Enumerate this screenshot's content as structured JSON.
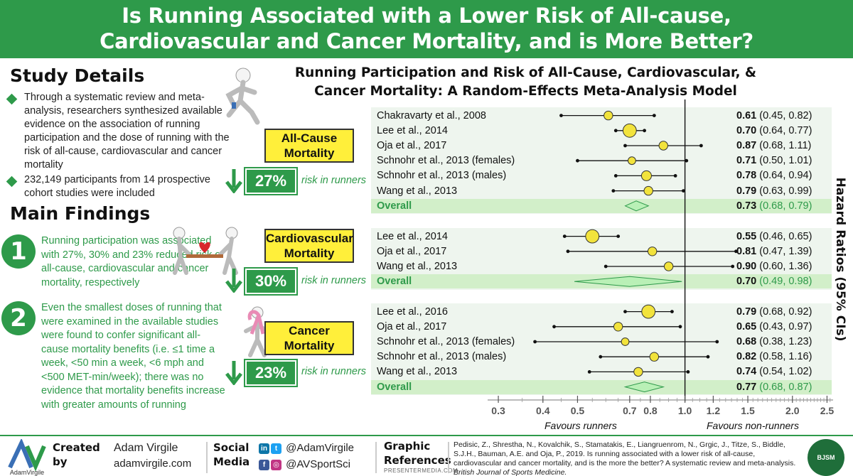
{
  "header": {
    "line1": "Is Running Associated with a Lower Risk of All-cause,",
    "line2": "Cardiovascular and Cancer Mortality, and is More Better?"
  },
  "study_details": {
    "title": "Study Details",
    "bullets": [
      "Through a systematic review and meta-analysis, researchers synthesized available evidence on the association of running participation and the dose of running with the risk of all-cause, cardiovascular and cancer mortality",
      "232,149 participants from 14 prospective cohort studies were included"
    ]
  },
  "main_findings": {
    "title": "Main Findings",
    "items": [
      {
        "num": "1",
        "text": "Running participation was associated with 27%, 30% and 23% reduced risk of all-cause, cardiovascular and cancer mortality, respectively"
      },
      {
        "num": "2",
        "text": "Even the smallest doses of running that were examined in the available studies were found to confer significant all-cause mortality benefits (i.e. ≤1 time a week, <50 min a week, <6 mph and <500 MET-min/week); there was no evidence that mortality benefits increase with greater amounts of running"
      }
    ]
  },
  "mortality": [
    {
      "label": "All-Cause Mortality",
      "pct": "27%",
      "risk": "risk in runners"
    },
    {
      "label": "Cardiovascular Mortality",
      "pct": "30%",
      "risk": "risk in runners"
    },
    {
      "label": "Cancer Mortality",
      "pct": "23%",
      "risk": "risk in runners"
    }
  ],
  "figure": {
    "title_line1": "Running Participation and Risk of All-Cause, Cardiovascular, &",
    "title_line2": "Cancer Mortality: A Random-Effects Meta-Analysis Model",
    "y_axis_label": "Hazard Ratios (95% CIs)",
    "favours_left": "Favours runners",
    "favours_right": "Favours non-runners"
  },
  "chart_data": {
    "type": "forest",
    "scale": "log",
    "xlim": [
      0.28,
      2.6
    ],
    "reference_line": 1.0,
    "ticks": [
      "0.3",
      "0.4",
      "0.5",
      "0.7",
      "0.8",
      "1.0",
      "1.2",
      "1.5",
      "2.0",
      "2.5"
    ],
    "groups": [
      {
        "name": "All-Cause Mortality",
        "studies": [
          {
            "label": "Chakravarty et al., 2008",
            "hr": 0.61,
            "lo": 0.45,
            "hi": 0.82,
            "hr_text": "0.61",
            "ci_text": "(0.45, 0.82)",
            "weight": 2
          },
          {
            "label": "Lee et al., 2014",
            "hr": 0.7,
            "lo": 0.64,
            "hi": 0.77,
            "hr_text": "0.70",
            "ci_text": "(0.64, 0.77)",
            "weight": 4
          },
          {
            "label": "Oja et al., 2017",
            "hr": 0.87,
            "lo": 0.68,
            "hi": 1.11,
            "hr_text": "0.87",
            "ci_text": "(0.68, 1.11)",
            "weight": 2
          },
          {
            "label": "Schnohr et al., 2013 (females)",
            "hr": 0.71,
            "lo": 0.5,
            "hi": 1.01,
            "hr_text": "0.71",
            "ci_text": "(0.50, 1.01)",
            "weight": 1.5
          },
          {
            "label": "Schnohr et al., 2013 (males)",
            "hr": 0.78,
            "lo": 0.64,
            "hi": 0.94,
            "hr_text": "0.78",
            "ci_text": "(0.64, 0.94)",
            "weight": 2.5
          },
          {
            "label": "Wang et al., 2013",
            "hr": 0.79,
            "lo": 0.63,
            "hi": 0.99,
            "hr_text": "0.79",
            "ci_text": "(0.63, 0.99)",
            "weight": 2
          }
        ],
        "overall": {
          "label": "Overall",
          "hr": 0.73,
          "lo": 0.68,
          "hi": 0.79,
          "hr_text": "0.73",
          "ci_text": "(0.68, 0.79)"
        }
      },
      {
        "name": "Cardiovascular Mortality",
        "studies": [
          {
            "label": "Lee et al., 2014",
            "hr": 0.55,
            "lo": 0.46,
            "hi": 0.65,
            "hr_text": "0.55",
            "ci_text": "(0.46, 0.65)",
            "weight": 4
          },
          {
            "label": "Oja et al., 2017",
            "hr": 0.81,
            "lo": 0.47,
            "hi": 1.39,
            "hr_text": "0.81",
            "ci_text": "(0.47, 1.39)",
            "weight": 2
          },
          {
            "label": "Wang et al., 2013",
            "hr": 0.9,
            "lo": 0.6,
            "hi": 1.36,
            "hr_text": "0.90",
            "ci_text": "(0.60, 1.36)",
            "weight": 2
          }
        ],
        "overall": {
          "label": "Overall",
          "hr": 0.7,
          "lo": 0.49,
          "hi": 0.98,
          "hr_text": "0.70",
          "ci_text": "(0.49, 0.98)"
        }
      },
      {
        "name": "Cancer Mortality",
        "studies": [
          {
            "label": "Lee et al., 2016",
            "hr": 0.79,
            "lo": 0.68,
            "hi": 0.92,
            "hr_text": "0.79",
            "ci_text": "(0.68, 0.92)",
            "weight": 4
          },
          {
            "label": "Oja et al., 2017",
            "hr": 0.65,
            "lo": 0.43,
            "hi": 0.97,
            "hr_text": "0.65",
            "ci_text": "(0.43, 0.97)",
            "weight": 2
          },
          {
            "label": "Schnohr et al., 2013 (females)",
            "hr": 0.68,
            "lo": 0.38,
            "hi": 1.23,
            "hr_text": "0.68",
            "ci_text": "(0.38, 1.23)",
            "weight": 1.5
          },
          {
            "label": "Schnohr et al., 2013 (males)",
            "hr": 0.82,
            "lo": 0.58,
            "hi": 1.16,
            "hr_text": "0.82",
            "ci_text": "(0.58, 1.16)",
            "weight": 2
          },
          {
            "label": "Wang et al., 2013",
            "hr": 0.74,
            "lo": 0.54,
            "hi": 1.02,
            "hr_text": "0.74",
            "ci_text": "(0.54, 1.02)",
            "weight": 2
          }
        ],
        "overall": {
          "label": "Overall",
          "hr": 0.77,
          "lo": 0.68,
          "hi": 0.87,
          "hr_text": "0.77",
          "ci_text": "(0.68, 0.87)"
        }
      }
    ],
    "colors": {
      "marker": "#f2e33c",
      "diamond": "#b9f0b6",
      "overall_text": "#2e9a4a"
    }
  },
  "footer": {
    "created_by_1": "Created",
    "created_by_2": "by",
    "name": "Adam Virgile",
    "site": "adamvirgile.com",
    "social_1": "Social",
    "social_2": "Media",
    "handle1": "@AdamVirgile",
    "handle2": "@AVSportSci",
    "graphic_1": "Graphic",
    "graphic_2": "References",
    "graphic_src": "PRESENTERMEDIA.COM",
    "reference": "Pedisic, Z., Shrestha, N., Kovalchik, S., Stamatakis, E., Liangruenrom, N., Grgic, J., Titze, S., Biddle, S.J.H., Bauman, A.E. and Oja, P., 2019. Is running associated with a lower risk of all-cause, cardiovascular and cancer mortality, and is the more the better? A systematic review and meta-analysis.",
    "journal": "British Journal of Sports Medicine.",
    "logo_text": "AdamVirgile",
    "badge_text": "BJSM"
  }
}
